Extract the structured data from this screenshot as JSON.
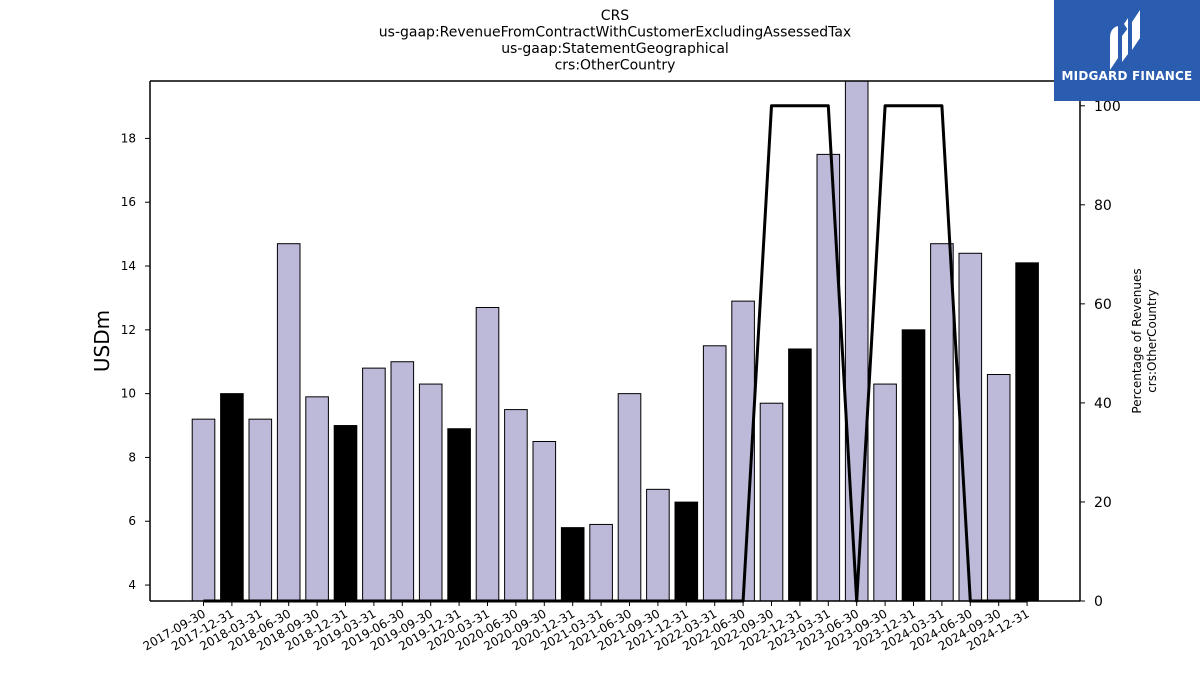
{
  "chart_data": {
    "type": "bar",
    "title_lines": [
      "CRS",
      "us-gaap:RevenueFromContractWithCustomerExcludingAssessedTax",
      "us-gaap:StatementGeographical",
      "crs:OtherCountry"
    ],
    "ylabel": "USDm",
    "y2label_lines": [
      "Percentage of Revenues",
      "crs:OtherCountry"
    ],
    "categories": [
      "2017-09-30",
      "2017-12-31",
      "2018-03-31",
      "2018-06-30",
      "2018-09-30",
      "2018-12-31",
      "2019-03-31",
      "2019-06-30",
      "2019-09-30",
      "2019-12-31",
      "2020-03-31",
      "2020-06-30",
      "2020-09-30",
      "2020-12-31",
      "2021-03-31",
      "2021-06-30",
      "2021-09-30",
      "2021-12-31",
      "2022-03-31",
      "2022-06-30",
      "2022-09-30",
      "2022-12-31",
      "2023-03-31",
      "2023-06-30",
      "2023-09-30",
      "2023-12-31",
      "2024-03-31",
      "2024-06-30",
      "2024-09-30",
      "2024-12-31"
    ],
    "values": [
      9.2,
      10.0,
      9.2,
      14.7,
      9.9,
      9.0,
      10.8,
      11.0,
      10.3,
      8.9,
      12.7,
      9.5,
      8.5,
      5.8,
      5.9,
      10.0,
      7.0,
      6.6,
      11.5,
      12.9,
      9.7,
      11.4,
      17.5,
      19.8,
      10.3,
      12.0,
      14.7,
      14.4,
      10.6,
      14.1
    ],
    "highlight": [
      false,
      true,
      false,
      false,
      false,
      true,
      false,
      false,
      false,
      true,
      false,
      false,
      false,
      true,
      false,
      false,
      false,
      true,
      false,
      false,
      false,
      true,
      false,
      false,
      false,
      true,
      false,
      false,
      false,
      true
    ],
    "line_series": {
      "name": "Percentage of Revenues crs:OtherCountry",
      "values": [
        0,
        0,
        0,
        0,
        0,
        0,
        0,
        0,
        0,
        0,
        0,
        0,
        0,
        0,
        0,
        0,
        0,
        0,
        0,
        0,
        100,
        100,
        100,
        0,
        100,
        100,
        100,
        0,
        0,
        0
      ]
    },
    "ylim": [
      3.5,
      19.8
    ],
    "yticks": [
      4,
      6,
      8,
      10,
      12,
      14,
      16,
      18
    ],
    "y2lim": [
      0,
      105
    ],
    "y2ticks": [
      0,
      20,
      40,
      60,
      80,
      100
    ],
    "colors": {
      "bar": "#bcb9d9",
      "highlight_bar": "#000000",
      "line": "#000000"
    },
    "grid": false
  },
  "logo": {
    "text": "MIDGARD FINANCE",
    "background": "#2a5db0"
  }
}
